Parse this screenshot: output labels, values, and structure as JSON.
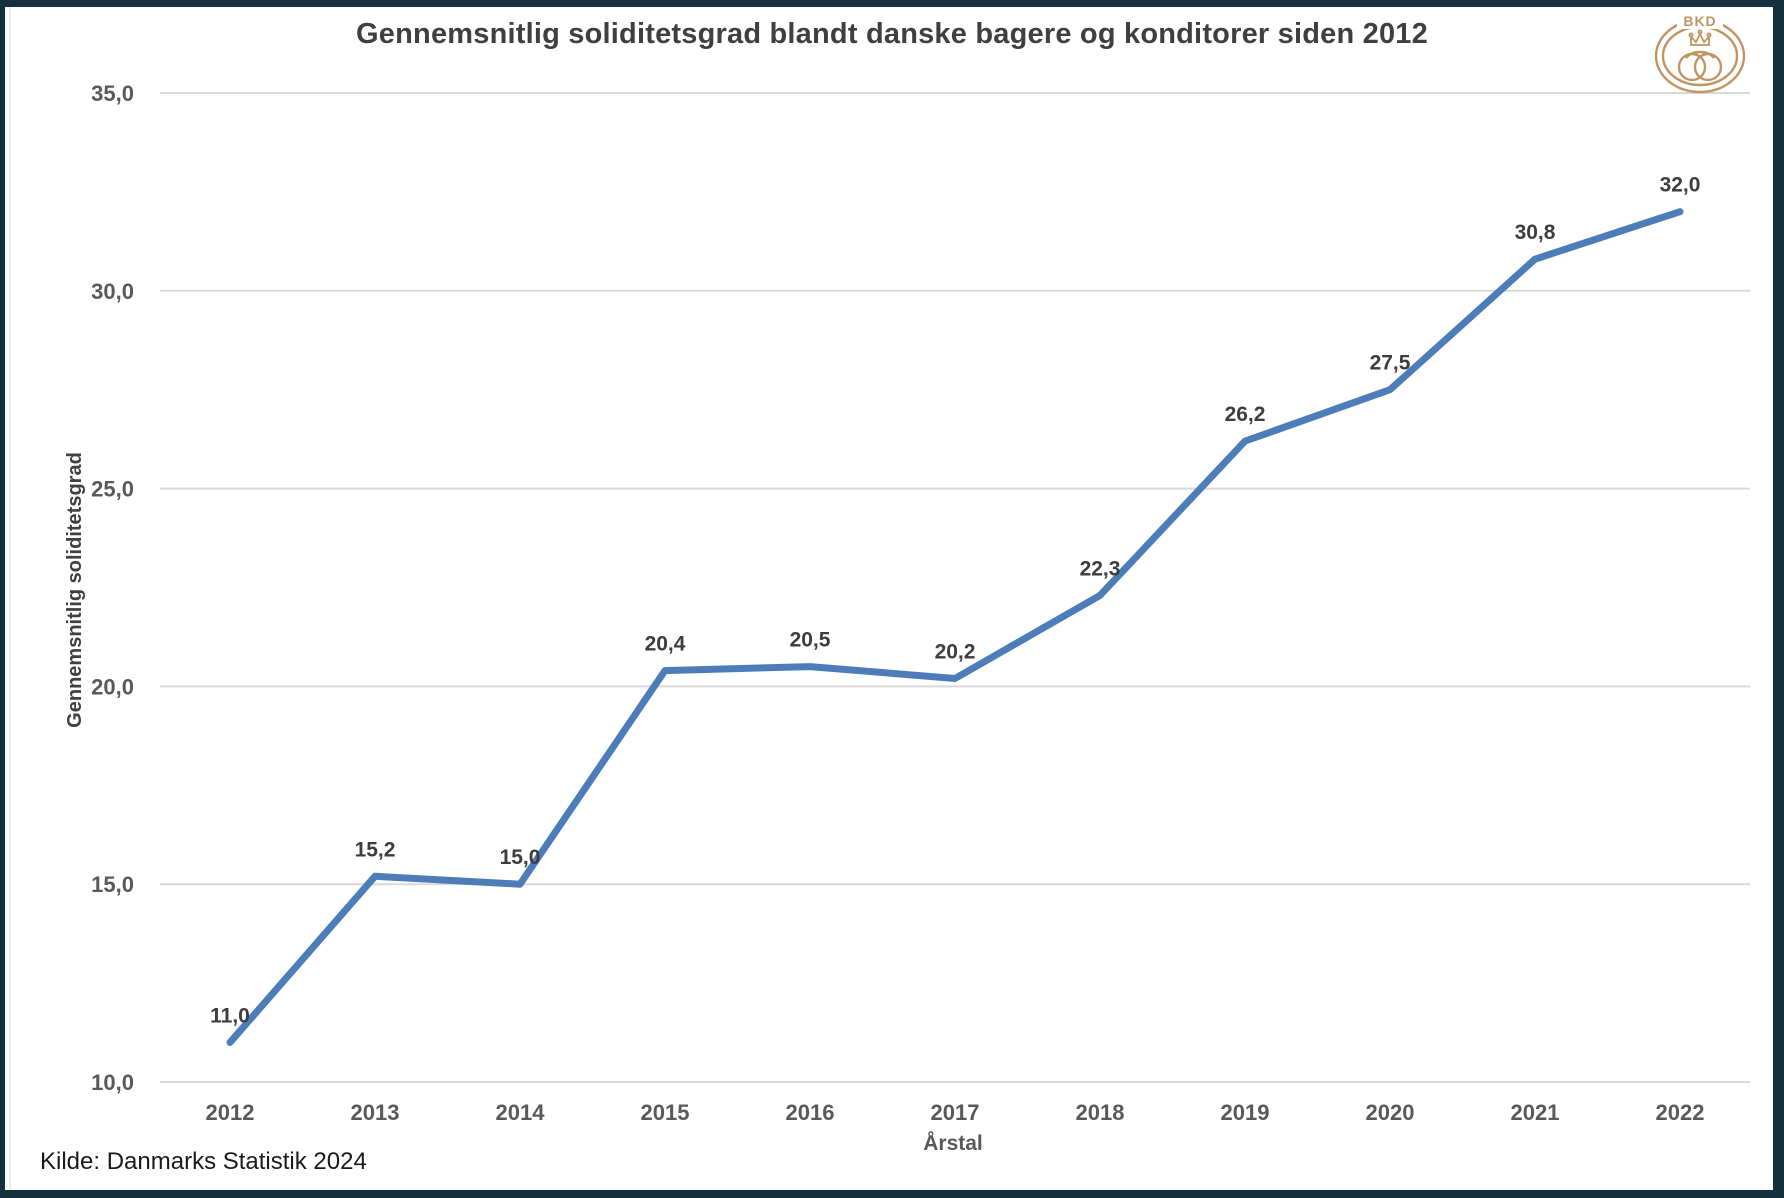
{
  "frame": {
    "border_color": "#14303e"
  },
  "header": {
    "title": "Gennemsnitlig soliditetsgrad blandt danske bagere og konditorer siden 2012"
  },
  "logo": {
    "text": "BKD",
    "color": "#bf9663"
  },
  "source": {
    "text": "Kilde: Danmarks Statistik 2024"
  },
  "chart_data": {
    "type": "line",
    "title": "Gennemsnitlig soliditetsgrad blandt danske bagere og konditorer siden 2012",
    "xlabel": "Årstal",
    "ylabel": "Gennemsnitlig soliditetsgrad",
    "categories": [
      "2012",
      "2013",
      "2014",
      "2015",
      "2016",
      "2017",
      "2018",
      "2019",
      "2020",
      "2021",
      "2022"
    ],
    "series": [
      {
        "name": "Gennemsnitlig soliditetsgrad",
        "values": [
          11.0,
          15.2,
          15.0,
          20.4,
          20.5,
          20.2,
          22.3,
          26.2,
          27.5,
          30.8,
          32.0
        ],
        "point_labels": [
          "11,0",
          "15,2",
          "15,0",
          "20,4",
          "20,5",
          "20,2",
          "22,3",
          "26,2",
          "27,5",
          "30,8",
          "32,0"
        ]
      }
    ],
    "ylim": [
      10,
      35
    ],
    "y_ticks": [
      {
        "value": 10,
        "label": "10,0"
      },
      {
        "value": 15,
        "label": "15,0"
      },
      {
        "value": 20,
        "label": "20,0"
      },
      {
        "value": 25,
        "label": "25,0"
      },
      {
        "value": 30,
        "label": "30,0"
      },
      {
        "value": 35,
        "label": "35,0"
      }
    ],
    "grid": true,
    "legend": "none",
    "line_color": "#4c7db8",
    "gridline_color": "#d9d9d9",
    "tick_color": "#595959",
    "label_color": "#3d3d3d"
  }
}
